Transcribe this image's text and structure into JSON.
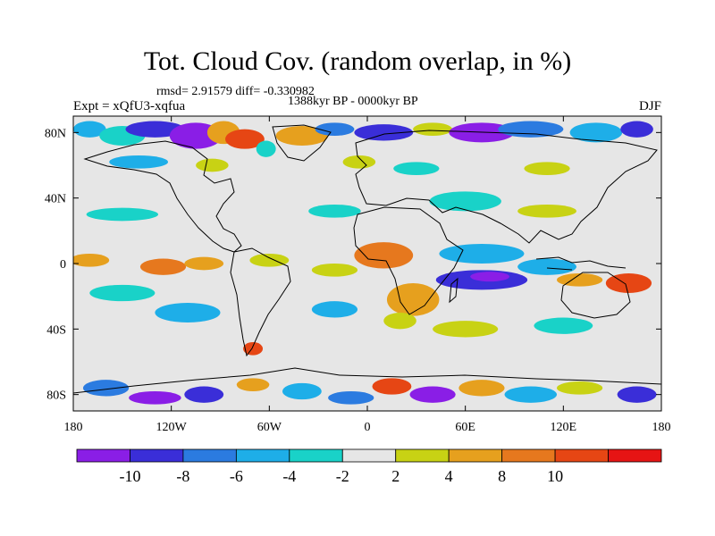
{
  "title": "Tot. Cloud Cov. (random overlap, in %)",
  "stats": "rmsd= 2.91579 diff= -0.330982",
  "period": "1388kyr BP - 0000kyr BP",
  "experiment": "Expt = xQfU3-xqfua",
  "season": "DJF",
  "map": {
    "projection": "cylindrical-equidistant",
    "lon_range": [
      -180,
      180
    ],
    "lat_range": [
      -90,
      90
    ],
    "background_color": "#e6e6e6",
    "lon_ticks": [
      {
        "value": -180,
        "label": "180"
      },
      {
        "value": -120,
        "label": "120W"
      },
      {
        "value": -60,
        "label": "60W"
      },
      {
        "value": 0,
        "label": "0"
      },
      {
        "value": 60,
        "label": "60E"
      },
      {
        "value": 120,
        "label": "120E"
      },
      {
        "value": 180,
        "label": "180"
      }
    ],
    "lat_ticks": [
      {
        "value": 80,
        "label": "80N"
      },
      {
        "value": 40,
        "label": "40N"
      },
      {
        "value": 0,
        "label": "0"
      },
      {
        "value": -40,
        "label": "40S"
      },
      {
        "value": -80,
        "label": "80S"
      }
    ]
  },
  "colorbar": {
    "colors": [
      "#8a1ee6",
      "#3a2ed8",
      "#2b7be0",
      "#1eaee8",
      "#19d2c8",
      "#e6e6e6",
      "#c8d214",
      "#e6a01e",
      "#e6781e",
      "#e64614",
      "#e61414"
    ],
    "labels": [
      "-10",
      "-8",
      "-6",
      "-4",
      "-2",
      "2",
      "4",
      "8",
      "10"
    ]
  },
  "anomaly_regions": [
    {
      "lon": -170,
      "lat": 82,
      "rx": 10,
      "ry": 5,
      "level": 3
    },
    {
      "lon": -150,
      "lat": 78,
      "rx": 14,
      "ry": 6,
      "level": 4
    },
    {
      "lon": -130,
      "lat": 82,
      "rx": 18,
      "ry": 5,
      "level": 1
    },
    {
      "lon": -105,
      "lat": 78,
      "rx": 16,
      "ry": 8,
      "level": 0
    },
    {
      "lon": -88,
      "lat": 80,
      "rx": 10,
      "ry": 7,
      "level": 7
    },
    {
      "lon": -75,
      "lat": 76,
      "rx": 12,
      "ry": 6,
      "level": 9
    },
    {
      "lon": -62,
      "lat": 70,
      "rx": 6,
      "ry": 5,
      "level": 4
    },
    {
      "lon": -40,
      "lat": 78,
      "rx": 16,
      "ry": 6,
      "level": 7
    },
    {
      "lon": -20,
      "lat": 82,
      "rx": 12,
      "ry": 4,
      "level": 2
    },
    {
      "lon": 10,
      "lat": 80,
      "rx": 18,
      "ry": 5,
      "level": 1
    },
    {
      "lon": 40,
      "lat": 82,
      "rx": 12,
      "ry": 4,
      "level": 6
    },
    {
      "lon": 70,
      "lat": 80,
      "rx": 20,
      "ry": 6,
      "level": 0
    },
    {
      "lon": 100,
      "lat": 82,
      "rx": 20,
      "ry": 5,
      "level": 2
    },
    {
      "lon": 140,
      "lat": 80,
      "rx": 16,
      "ry": 6,
      "level": 3
    },
    {
      "lon": 165,
      "lat": 82,
      "rx": 10,
      "ry": 5,
      "level": 1
    },
    {
      "lon": -140,
      "lat": 62,
      "rx": 18,
      "ry": 4,
      "level": 3
    },
    {
      "lon": -95,
      "lat": 60,
      "rx": 10,
      "ry": 4,
      "level": 6
    },
    {
      "lon": -5,
      "lat": 62,
      "rx": 10,
      "ry": 4,
      "level": 6
    },
    {
      "lon": 30,
      "lat": 58,
      "rx": 14,
      "ry": 4,
      "level": 4
    },
    {
      "lon": 110,
      "lat": 58,
      "rx": 14,
      "ry": 4,
      "level": 6
    },
    {
      "lon": -150,
      "lat": 30,
      "rx": 22,
      "ry": 4,
      "level": 4
    },
    {
      "lon": -20,
      "lat": 32,
      "rx": 16,
      "ry": 4,
      "level": 4
    },
    {
      "lon": 60,
      "lat": 38,
      "rx": 22,
      "ry": 6,
      "level": 4
    },
    {
      "lon": 110,
      "lat": 32,
      "rx": 18,
      "ry": 4,
      "level": 6
    },
    {
      "lon": -170,
      "lat": 2,
      "rx": 12,
      "ry": 4,
      "level": 7
    },
    {
      "lon": -125,
      "lat": -2,
      "rx": 14,
      "ry": 5,
      "level": 8
    },
    {
      "lon": -100,
      "lat": 0,
      "rx": 12,
      "ry": 4,
      "level": 7
    },
    {
      "lon": -60,
      "lat": 2,
      "rx": 12,
      "ry": 4,
      "level": 6
    },
    {
      "lon": -20,
      "lat": -4,
      "rx": 14,
      "ry": 4,
      "level": 6
    },
    {
      "lon": 10,
      "lat": 5,
      "rx": 18,
      "ry": 8,
      "level": 8
    },
    {
      "lon": 28,
      "lat": -22,
      "rx": 16,
      "ry": 10,
      "level": 7
    },
    {
      "lon": 20,
      "lat": -35,
      "rx": 10,
      "ry": 5,
      "level": 6
    },
    {
      "lon": 70,
      "lat": 6,
      "rx": 26,
      "ry": 6,
      "level": 3
    },
    {
      "lon": 70,
      "lat": -10,
      "rx": 28,
      "ry": 6,
      "level": 1
    },
    {
      "lon": 75,
      "lat": -8,
      "rx": 12,
      "ry": 3,
      "level": 0
    },
    {
      "lon": 110,
      "lat": -2,
      "rx": 18,
      "ry": 5,
      "level": 3
    },
    {
      "lon": 130,
      "lat": -10,
      "rx": 14,
      "ry": 4,
      "level": 7
    },
    {
      "lon": 160,
      "lat": -12,
      "rx": 14,
      "ry": 6,
      "level": 9
    },
    {
      "lon": -150,
      "lat": -18,
      "rx": 20,
      "ry": 5,
      "level": 4
    },
    {
      "lon": -110,
      "lat": -30,
      "rx": 20,
      "ry": 6,
      "level": 3
    },
    {
      "lon": -20,
      "lat": -28,
      "rx": 14,
      "ry": 5,
      "level": 3
    },
    {
      "lon": 60,
      "lat": -40,
      "rx": 20,
      "ry": 5,
      "level": 6
    },
    {
      "lon": 120,
      "lat": -38,
      "rx": 18,
      "ry": 5,
      "level": 4
    },
    {
      "lon": -70,
      "lat": -52,
      "rx": 6,
      "ry": 4,
      "level": 9
    },
    {
      "lon": -160,
      "lat": -76,
      "rx": 14,
      "ry": 5,
      "level": 2
    },
    {
      "lon": -130,
      "lat": -82,
      "rx": 16,
      "ry": 4,
      "level": 0
    },
    {
      "lon": -100,
      "lat": -80,
      "rx": 12,
      "ry": 5,
      "level": 1
    },
    {
      "lon": -70,
      "lat": -74,
      "rx": 10,
      "ry": 4,
      "level": 7
    },
    {
      "lon": -40,
      "lat": -78,
      "rx": 12,
      "ry": 5,
      "level": 3
    },
    {
      "lon": -10,
      "lat": -82,
      "rx": 14,
      "ry": 4,
      "level": 2
    },
    {
      "lon": 15,
      "lat": -75,
      "rx": 12,
      "ry": 5,
      "level": 9
    },
    {
      "lon": 40,
      "lat": -80,
      "rx": 14,
      "ry": 5,
      "level": 0
    },
    {
      "lon": 70,
      "lat": -76,
      "rx": 14,
      "ry": 5,
      "level": 7
    },
    {
      "lon": 100,
      "lat": -80,
      "rx": 16,
      "ry": 5,
      "level": 3
    },
    {
      "lon": 130,
      "lat": -76,
      "rx": 14,
      "ry": 4,
      "level": 6
    },
    {
      "lon": 165,
      "lat": -80,
      "rx": 12,
      "ry": 5,
      "level": 1
    }
  ]
}
